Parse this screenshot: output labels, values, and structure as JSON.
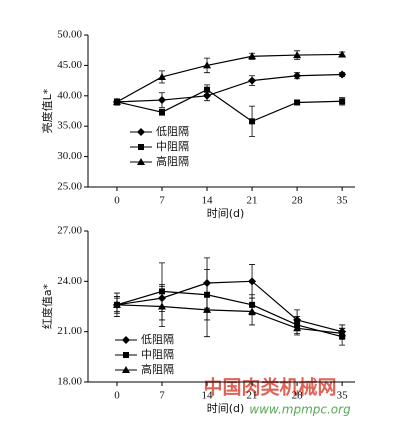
{
  "chart_data": [
    {
      "type": "line",
      "ylabel": "亮度值L*",
      "xlabel": "时间(d)",
      "x": [
        0,
        7,
        14,
        21,
        28,
        35
      ],
      "xlim": [
        -4.5,
        37
      ],
      "xticks": [
        0,
        7,
        14,
        21,
        28,
        35
      ],
      "ylim": [
        25,
        50
      ],
      "yticks": [
        {
          "value": 25,
          "label": "25.00"
        },
        {
          "value": 30,
          "label": "30.00"
        },
        {
          "value": 35,
          "label": "35.00"
        },
        {
          "value": 40,
          "label": "40.00"
        },
        {
          "value": 45,
          "label": "45.00"
        },
        {
          "value": 50,
          "label": "50.00"
        }
      ],
      "series": [
        {
          "name": "低阻隔",
          "color": "#000000",
          "marker": "diamond",
          "values": [
            39.0,
            39.3,
            40.0,
            42.5,
            43.3,
            43.5
          ],
          "errors": [
            0.5,
            1.2,
            0.8,
            0.8,
            0.5,
            0.3
          ]
        },
        {
          "name": "中阻隔",
          "color": "#000000",
          "marker": "square",
          "values": [
            39.0,
            37.3,
            41.0,
            35.8,
            38.9,
            39.1
          ],
          "errors": [
            0.5,
            0.5,
            0.8,
            2.5,
            0.3,
            0.6
          ]
        },
        {
          "name": "高阻隔",
          "color": "#000000",
          "marker": "triangle",
          "values": [
            39.0,
            43.1,
            45.0,
            46.5,
            46.7,
            46.8
          ],
          "errors": [
            0.5,
            1.0,
            1.2,
            0.5,
            0.7,
            0.4
          ]
        }
      ]
    },
    {
      "type": "line",
      "ylabel": "红度值a*",
      "xlabel": "时间(d)",
      "x": [
        0,
        7,
        14,
        21,
        28,
        35
      ],
      "xlim": [
        -4.5,
        37
      ],
      "xticks": [
        0,
        7,
        14,
        21,
        28,
        35
      ],
      "ylim": [
        18,
        27
      ],
      "yticks": [
        {
          "value": 18,
          "label": "18.00"
        },
        {
          "value": 21,
          "label": "21.00"
        },
        {
          "value": 24,
          "label": "24.00"
        },
        {
          "value": 27,
          "label": "27.00"
        }
      ],
      "series": [
        {
          "name": "低阻隔",
          "color": "#000000",
          "marker": "diamond",
          "values": [
            22.6,
            23.0,
            23.9,
            24.0,
            21.7,
            21.0
          ],
          "errors": [
            0.7,
            0.8,
            1.5,
            1.0,
            0.6,
            0.4
          ]
        },
        {
          "name": "中阻隔",
          "color": "#000000",
          "marker": "square",
          "values": [
            22.6,
            23.4,
            23.2,
            22.6,
            21.4,
            20.7
          ],
          "errors": [
            0.5,
            1.7,
            1.5,
            0.6,
            0.5,
            0.5
          ]
        },
        {
          "name": "高阻隔",
          "color": "#000000",
          "marker": "triangle",
          "values": [
            22.6,
            22.5,
            22.3,
            22.2,
            21.2,
            20.9
          ],
          "errors": [
            0.4,
            1.2,
            1.6,
            0.8,
            0.4,
            0.3
          ]
        }
      ]
    }
  ],
  "watermark": {
    "title": "中国肉类机械网",
    "url": "www.mpmpc.org"
  }
}
